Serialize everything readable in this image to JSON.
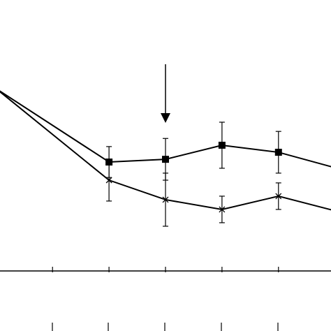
{
  "chart_data": {
    "type": "line",
    "x": [
      0,
      2,
      3,
      4,
      5,
      6
    ],
    "series": [
      {
        "color": "#000000",
        "marker": "square",
        "values": [
          67.3,
          40.2,
          41.2,
          46.4,
          43.8,
          38.1
        ],
        "errors": [
          null,
          5.7,
          7.7,
          8.5,
          7.7,
          null
        ]
      },
      {
        "color": "#000000",
        "marker": "x",
        "values": [
          67.3,
          33.5,
          26.3,
          22.7,
          27.6,
          22.2
        ],
        "errors": [
          null,
          7.7,
          9.8,
          4.9,
          4.9,
          null
        ]
      }
    ],
    "xlim": [
      0.07,
      5.93
    ],
    "xticks": [
      1,
      2,
      3,
      4,
      5
    ],
    "ylim": [
      0,
      100
    ]
  }
}
